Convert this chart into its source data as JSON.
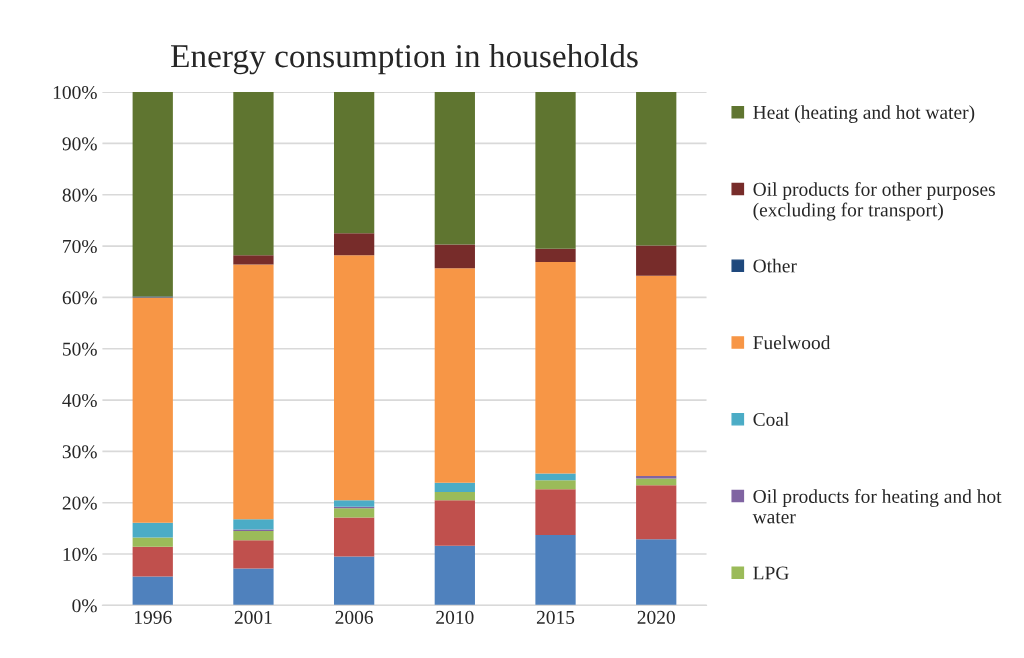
{
  "chart_data": {
    "type": "bar",
    "title": "Energy consumption in households",
    "stacked": true,
    "categories": [
      "1996",
      "2001",
      "2006",
      "2010",
      "2015",
      "2020"
    ],
    "series": [
      {
        "color": "#4f81bd",
        "values": [
          5.6,
          7.2,
          9.5,
          11.6,
          13.7,
          12.9
        ]
      },
      {
        "color": "#c0504d",
        "values": [
          5.8,
          5.5,
          7.6,
          8.9,
          8.9,
          10.5
        ]
      },
      {
        "name": "LPG",
        "color": "#9bbb59",
        "values": [
          1.8,
          1.8,
          1.8,
          1.6,
          1.8,
          1.3
        ]
      },
      {
        "name": "Oil products for heating and hot water",
        "color": "#8064a2",
        "values": [
          0,
          0.3,
          0.3,
          0,
          0,
          0.5
        ]
      },
      {
        "name": "Coal",
        "color": "#4bacc6",
        "values": [
          2.9,
          2.0,
          1.3,
          1.8,
          1.3,
          0
        ]
      },
      {
        "name": "Fuelwood",
        "color": "#f79646",
        "values": [
          43.9,
          49.6,
          47.7,
          41.8,
          41.2,
          39.0
        ]
      },
      {
        "name": "Other",
        "color": "#1f497d",
        "values": [
          0.2,
          0,
          0,
          0,
          0,
          0
        ]
      },
      {
        "name": "Oil products for other purposes (excluding for transport)",
        "color": "#772c2a",
        "values": [
          0,
          1.8,
          4.3,
          4.6,
          2.6,
          5.9
        ]
      },
      {
        "name": "Heat (heating and hot water)",
        "color": "#5f7530",
        "values": [
          39.8,
          31.8,
          27.5,
          29.7,
          30.5,
          29.9
        ]
      }
    ],
    "ylim": [
      0,
      100
    ],
    "yticks": [
      {
        "value": 0,
        "label": "0%"
      },
      {
        "value": 10,
        "label": "10%"
      },
      {
        "value": 20,
        "label": "20%"
      },
      {
        "value": 30,
        "label": "30%"
      },
      {
        "value": 40,
        "label": "40%"
      },
      {
        "value": 50,
        "label": "50%"
      },
      {
        "value": 60,
        "label": "60%"
      },
      {
        "value": 70,
        "label": "70%"
      },
      {
        "value": 80,
        "label": "80%"
      },
      {
        "value": 90,
        "label": "90%"
      },
      {
        "value": 100,
        "label": "100%"
      }
    ],
    "grid": "y",
    "legend": "right"
  }
}
